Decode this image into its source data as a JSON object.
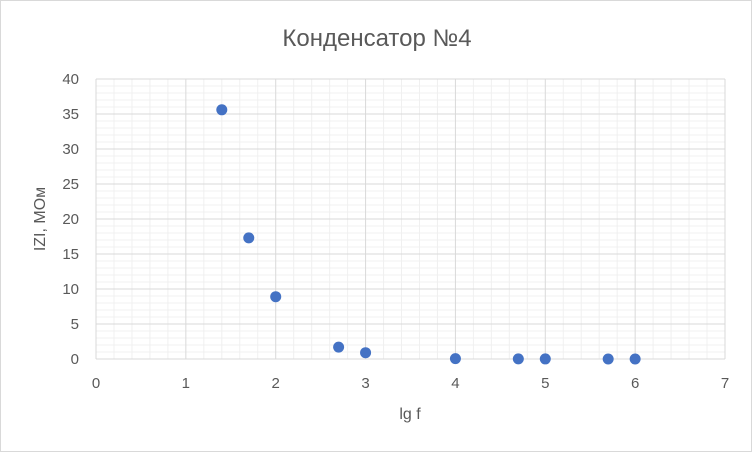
{
  "chart_data": {
    "type": "scatter",
    "title": "Конденсатор №4",
    "xlabel": "lg f",
    "ylabel": "IZI, МОм",
    "xlim": [
      0,
      7
    ],
    "ylim": [
      0,
      40
    ],
    "x_ticks": [
      "0",
      "1",
      "2",
      "3",
      "4",
      "5",
      "6",
      "7"
    ],
    "y_ticks": [
      "0",
      "5",
      "10",
      "15",
      "20",
      "25",
      "30",
      "35",
      "40"
    ],
    "grid": true,
    "legend": "none",
    "marker_color": "#4472c4",
    "series": [
      {
        "points": [
          {
            "x": 1.4,
            "y": 35.6
          },
          {
            "x": 1.7,
            "y": 17.3
          },
          {
            "x": 2.0,
            "y": 8.9
          },
          {
            "x": 2.7,
            "y": 1.7
          },
          {
            "x": 3.0,
            "y": 0.9
          },
          {
            "x": 4.0,
            "y": 0.05
          },
          {
            "x": 4.7,
            "y": 0.02
          },
          {
            "x": 5.0,
            "y": 0.01
          },
          {
            "x": 5.7,
            "y": 0.005
          },
          {
            "x": 6.0,
            "y": 0.002
          }
        ]
      }
    ]
  }
}
